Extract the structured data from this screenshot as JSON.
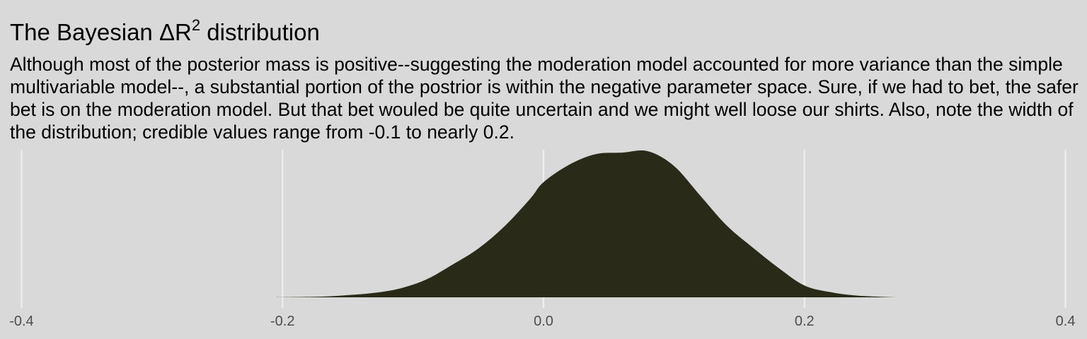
{
  "chart_data": {
    "type": "area",
    "title_prefix": "The Bayesian ",
    "title_symbol": "ΔR",
    "title_superscript": "2",
    "title_suffix": " distribution",
    "subtitle": "Although most of the posterior mass is positive--suggesting the moderation model accounted for more variance than the simple multivariable model--, a substantial portion of the postrior is within the negative parameter space. Sure, if we had to bet, the safer bet is on the moderation model. But that bet wouled be quite uncertain and we might well loose our shirts. Also, note the width of the distribution; credible values range from -0.1 to nearly 0.2.",
    "xlabel": "",
    "ylabel": "",
    "xlim": [
      -0.41,
      0.41
    ],
    "ylim": [
      0,
      1.0
    ],
    "x_ticks": [
      -0.4,
      -0.2,
      0.0,
      0.2,
      0.4
    ],
    "x_tick_labels": [
      "-0.4",
      "-0.2",
      "0.0",
      "0.2",
      "0.4"
    ],
    "grid": "vertical major lines only",
    "fill_color": "#2a2a18",
    "background_color": "#d9d9d9",
    "grid_color": "#eeeeee",
    "x": [
      -0.21,
      -0.17,
      -0.15,
      -0.13,
      -0.11,
      -0.09,
      -0.07,
      -0.05,
      -0.03,
      -0.01,
      0.0,
      0.02,
      0.04,
      0.06,
      0.08,
      0.1,
      0.12,
      0.14,
      0.16,
      0.18,
      0.2,
      0.22,
      0.24,
      0.27
    ],
    "values": [
      0.0,
      0.005,
      0.015,
      0.03,
      0.06,
      0.12,
      0.22,
      0.33,
      0.48,
      0.67,
      0.78,
      0.9,
      0.97,
      0.98,
      0.99,
      0.89,
      0.69,
      0.49,
      0.34,
      0.2,
      0.08,
      0.035,
      0.012,
      0.0
    ]
  }
}
